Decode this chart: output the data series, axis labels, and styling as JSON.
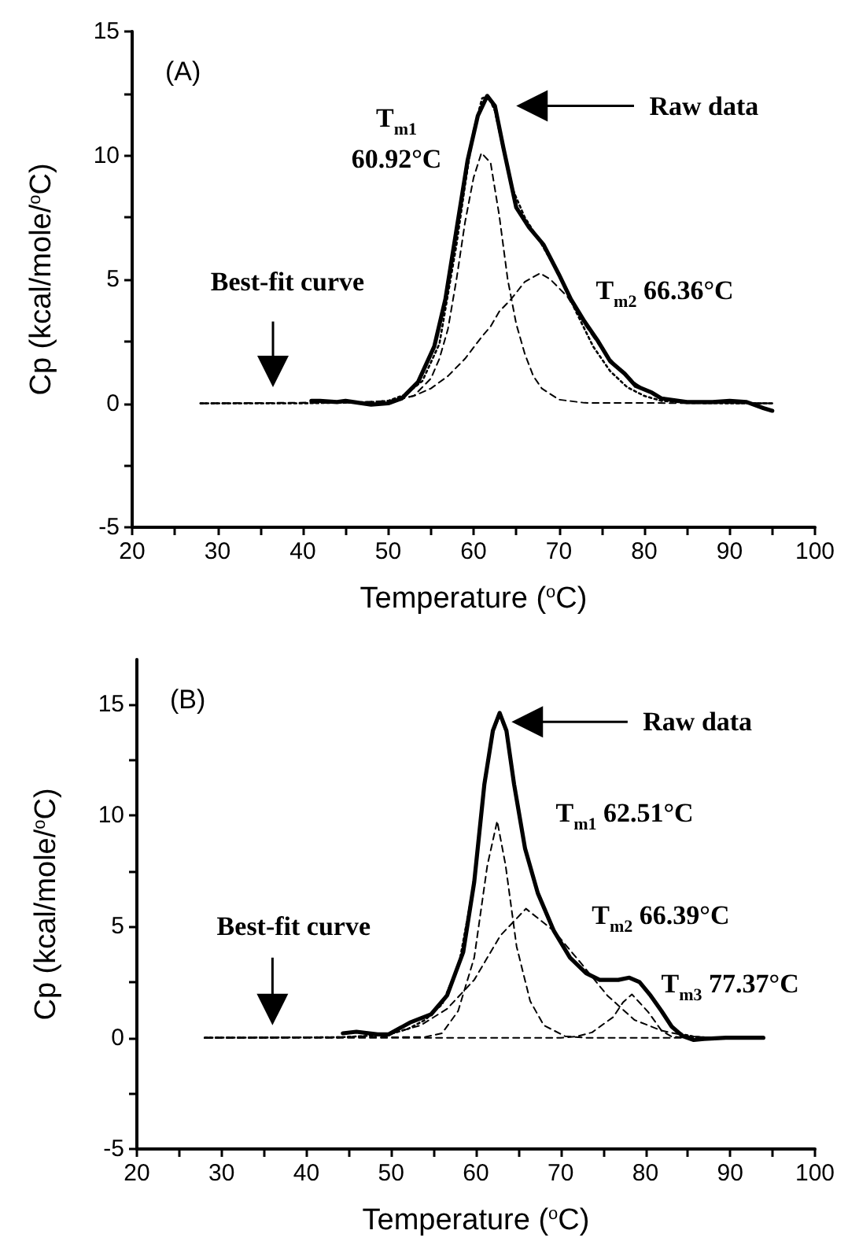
{
  "chart_data": [
    {
      "type": "line",
      "title": "(A)",
      "xlabel": "Temperature ($^{o}$C)",
      "ylabel": "Cp (kcal/mole/$^{o}$C)",
      "xlim": [
        20,
        100
      ],
      "ylim": [
        -5,
        15
      ],
      "xticks": [
        20,
        {
          "value": 25,
          "label": null
        },
        30,
        {
          "value": 35,
          "label": null
        },
        40,
        {
          "value": 45,
          "label": null
        },
        50,
        {
          "value": 55,
          "label": null
        },
        60,
        {
          "value": 65,
          "label": null
        },
        70,
        {
          "value": 75,
          "label": null
        },
        80,
        {
          "value": 85,
          "label": null
        },
        90,
        {
          "value": 95,
          "label": null
        },
        100
      ],
      "yticks": [
        -5,
        {
          "value": -2.5,
          "label": null
        },
        0,
        {
          "value": 2.5,
          "label": null
        },
        5,
        {
          "value": 7.5,
          "label": null
        },
        10,
        {
          "value": 12.5,
          "label": null
        },
        15
      ],
      "series": [
        {
          "color": "#000000",
          "line_style": "solid",
          "x": [
            41,
            42,
            44,
            45,
            48,
            50,
            51.6,
            53.5,
            55.4,
            56.7,
            58,
            59.3,
            60.5,
            61.6,
            62.5,
            63.5,
            65,
            66.5,
            68.2,
            70,
            71.4,
            73,
            74.6,
            76,
            77.7,
            79,
            80.9,
            82,
            85,
            88,
            90,
            92,
            94,
            95
          ],
          "values": [
            0.1,
            0.1,
            0.05,
            0.1,
            -0.05,
            0,
            0.2,
            0.86,
            2.3,
            4.2,
            7,
            9.8,
            11.6,
            12.4,
            12,
            10.3,
            7.9,
            7.1,
            6.4,
            5.2,
            4.2,
            3.3,
            2.5,
            1.7,
            1.2,
            0.7,
            0.43,
            0.2,
            0.05,
            0.05,
            0.1,
            0.05,
            -0.2,
            -0.3
          ]
        },
        {
          "color": "#000000",
          "line_style": "dotted",
          "x": [
            28,
            40,
            48,
            50,
            52,
            54,
            56,
            58,
            59,
            60,
            61,
            61.7,
            62.5,
            63.5,
            64.5,
            66,
            68,
            70,
            72,
            74,
            76,
            78,
            80,
            82,
            85,
            90,
            95
          ],
          "values": [
            0,
            0,
            0.05,
            0.1,
            0.35,
            0.9,
            2.4,
            6.4,
            8.8,
            11,
            12.3,
            12.4,
            11.8,
            10.2,
            8.7,
            7.5,
            6.4,
            5.2,
            3.7,
            2.3,
            1.3,
            0.65,
            0.3,
            0.1,
            0.02,
            0,
            0
          ]
        },
        {
          "color": "#000000",
          "line_style": "dashed",
          "x": [
            28,
            50,
            53,
            55,
            56,
            57,
            58,
            59,
            60,
            60.92,
            62,
            63,
            64,
            65,
            66,
            67,
            68,
            70,
            73,
            95
          ],
          "values": [
            0,
            0.05,
            0.3,
            1,
            1.8,
            3,
            5,
            7.3,
            9.1,
            10.1,
            9.7,
            7.6,
            5,
            3.2,
            2,
            1.1,
            0.6,
            0.15,
            0.02,
            0
          ]
        },
        {
          "color": "#000000",
          "line_style": "dashed",
          "x": [
            28,
            45,
            50,
            53,
            55,
            57,
            59,
            61,
            62,
            63,
            64.4,
            66,
            67.8,
            69,
            71,
            73,
            75,
            77,
            79,
            81,
            83,
            86,
            95
          ],
          "values": [
            0,
            0.02,
            0.1,
            0.3,
            0.6,
            1.1,
            1.8,
            2.7,
            3.1,
            3.7,
            4.2,
            4.9,
            5.25,
            5,
            4.3,
            3.2,
            2.2,
            1.4,
            0.8,
            0.35,
            0.15,
            0.05,
            0
          ]
        }
      ],
      "annotations": [
        "Raw data",
        "Best-fit curve",
        {
          "text": "T$_{m1}$\n60.92°C",
          "x": 60.92,
          "y": 10.1
        },
        {
          "text": "T$_{m2}$ 66.36°C",
          "x": 66.36,
          "y": 5.25
        }
      ]
    },
    {
      "type": "line",
      "title": "(B)",
      "xlabel": "Temperature ($^{o}$C)",
      "ylabel": "Cp (kcal/mole/$^{o}$C)",
      "xlim": [
        20,
        100
      ],
      "ylim": [
        -5,
        17
      ],
      "xticks": [
        20,
        {
          "value": 25,
          "label": null
        },
        30,
        {
          "value": 35,
          "label": null
        },
        40,
        {
          "value": 45,
          "label": null
        },
        50,
        {
          "value": 55,
          "label": null
        },
        60,
        {
          "value": 65,
          "label": null
        },
        70,
        {
          "value": 75,
          "label": null
        },
        80,
        {
          "value": 85,
          "label": null
        },
        90,
        {
          "value": 95,
          "label": null
        },
        100
      ],
      "yticks": [
        -5,
        {
          "value": -2.5,
          "label": null
        },
        0,
        {
          "value": 2.5,
          "label": null
        },
        5,
        {
          "value": 7.5,
          "label": null
        },
        10,
        {
          "value": 12.5,
          "label": null
        },
        15
      ],
      "series": [
        {
          "color": "#000000",
          "line_style": "solid",
          "x": [
            44.3,
            45.9,
            48.4,
            49.7,
            52.2,
            54.7,
            56.6,
            58.5,
            59.8,
            61,
            62,
            62.8,
            63.6,
            64.5,
            65.8,
            67.3,
            69.2,
            71.1,
            73,
            74.6,
            76.8,
            78.1,
            79.3,
            80.6,
            81.9,
            83.1,
            84.4,
            85.7,
            86.9,
            89.5,
            93.9
          ],
          "values": [
            0.2,
            0.27,
            0.15,
            0.15,
            0.68,
            1.05,
            1.9,
            3.85,
            7,
            11.4,
            13.8,
            14.6,
            13.8,
            11.4,
            8.5,
            6.5,
            4.8,
            3.6,
            2.9,
            2.6,
            2.6,
            2.7,
            2.5,
            1.9,
            1.2,
            0.5,
            0.07,
            -0.1,
            -0.05,
            0,
            0
          ]
        },
        {
          "color": "#000000",
          "line_style": "dotted",
          "x": [
            28,
            44,
            48,
            50,
            52,
            54,
            56,
            58,
            59.8,
            61,
            62,
            62.8,
            63.6,
            64.5,
            65.8,
            67.3,
            69.2,
            71.1,
            73,
            74.6,
            76.8,
            78.1,
            79.3,
            80.6,
            81.9,
            83.1,
            84.4,
            86,
            88,
            94
          ],
          "values": [
            0,
            0.02,
            0.1,
            0.18,
            0.4,
            0.8,
            1.5,
            3.3,
            7,
            11.3,
            13.7,
            14.5,
            13.7,
            11.4,
            8.5,
            6.5,
            4.8,
            3.6,
            2.9,
            2.6,
            2.6,
            2.7,
            2.5,
            1.9,
            1.2,
            0.5,
            0.15,
            0.03,
            0,
            0
          ]
        },
        {
          "color": "#000000",
          "line_style": "dashed",
          "x": [
            28,
            54,
            56,
            57.9,
            59.8,
            61.35,
            62.51,
            63.5,
            64.8,
            66.4,
            68,
            70.5,
            73,
            94
          ],
          "values": [
            0,
            0.03,
            0.2,
            1.2,
            3.6,
            7.75,
            9.74,
            7.75,
            4.1,
            1.65,
            0.56,
            0.07,
            0,
            0
          ]
        },
        {
          "color": "#000000",
          "line_style": "dashed",
          "x": [
            28,
            45,
            49.7,
            53.5,
            56.6,
            59.8,
            62.9,
            65.9,
            69.2,
            72.4,
            75.5,
            78.7,
            81.9,
            85,
            88,
            94
          ],
          "values": [
            0,
            0.03,
            0.15,
            0.56,
            1.3,
            2.6,
            4.6,
            5.8,
            4.8,
            3.35,
            1.9,
            0.8,
            0.32,
            0.07,
            0,
            0
          ]
        },
        {
          "color": "#000000",
          "line_style": "dashed",
          "x": [
            28,
            70,
            71.8,
            73.7,
            76.2,
            77.37,
            78.4,
            80.3,
            81.9,
            83.1,
            85,
            94
          ],
          "values": [
            0,
            0,
            0.05,
            0.24,
            0.93,
            1.6,
            1.95,
            1.17,
            0.32,
            0.05,
            0,
            0
          ]
        }
      ],
      "annotations": [
        "Raw data",
        "Best-fit curve",
        {
          "text": "T$_{m1}$ 62.51°C",
          "x": 62.51,
          "y": 9.74
        },
        {
          "text": "T$_{m2}$ 66.39°C",
          "x": 66.39,
          "y": 5.8
        },
        {
          "text": "T$_{m3}$ 77.37°C",
          "x": 77.37,
          "y": 1.95
        }
      ]
    }
  ]
}
